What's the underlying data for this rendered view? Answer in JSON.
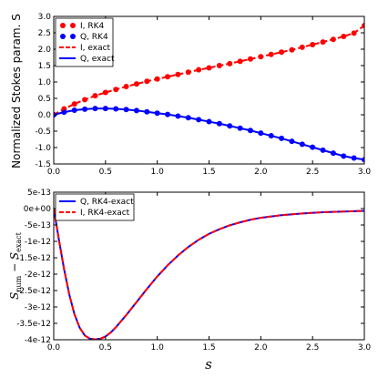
{
  "chart_data": [
    {
      "type": "line",
      "ylabel": "Normalized Stokes param. S",
      "xlabel": "",
      "xlim": [
        0,
        3
      ],
      "ylim": [
        -1.5,
        3.0
      ],
      "xticks": [
        "0.0",
        "0.5",
        "1.0",
        "1.5",
        "2.0",
        "2.5",
        "3.0"
      ],
      "yticks": [
        "-1.5",
        "-1.0",
        "-0.5",
        "0.0",
        "0.5",
        "1.0",
        "1.5",
        "2.0",
        "2.5",
        "3.0"
      ],
      "legend_position": "top-left",
      "colors": {
        "I": "#ff0000",
        "Q": "#0000ff"
      },
      "x": [
        0.0,
        0.1,
        0.2,
        0.3,
        0.4,
        0.5,
        0.6,
        0.7,
        0.8,
        0.9,
        1.0,
        1.1,
        1.2,
        1.3,
        1.4,
        1.5,
        1.6,
        1.7,
        1.8,
        1.9,
        2.0,
        2.1,
        2.2,
        2.3,
        2.4,
        2.5,
        2.6,
        2.7,
        2.8,
        2.9,
        3.0
      ],
      "series": [
        {
          "name": "I, RK4",
          "style": "dots",
          "color": "#ff0000",
          "values": [
            0.0,
            0.18,
            0.33,
            0.46,
            0.58,
            0.68,
            0.77,
            0.86,
            0.94,
            1.02,
            1.09,
            1.16,
            1.23,
            1.3,
            1.37,
            1.43,
            1.5,
            1.56,
            1.63,
            1.7,
            1.77,
            1.84,
            1.91,
            1.98,
            2.06,
            2.14,
            2.22,
            2.3,
            2.39,
            2.49,
            2.72
          ]
        },
        {
          "name": "Q, RK4",
          "style": "dots",
          "color": "#0000ff",
          "values": [
            0.0,
            0.08,
            0.14,
            0.17,
            0.19,
            0.19,
            0.18,
            0.16,
            0.13,
            0.09,
            0.05,
            0.01,
            -0.04,
            -0.09,
            -0.15,
            -0.21,
            -0.27,
            -0.34,
            -0.41,
            -0.48,
            -0.56,
            -0.64,
            -0.72,
            -0.81,
            -0.9,
            -0.99,
            -1.08,
            -1.17,
            -1.26,
            -1.32,
            -1.37
          ]
        },
        {
          "name": "I, exact",
          "style": "dashed",
          "color": "#ff0000",
          "values": [
            0.0,
            0.18,
            0.33,
            0.46,
            0.58,
            0.68,
            0.77,
            0.86,
            0.94,
            1.02,
            1.09,
            1.16,
            1.23,
            1.3,
            1.37,
            1.43,
            1.5,
            1.56,
            1.63,
            1.7,
            1.77,
            1.84,
            1.91,
            1.98,
            2.06,
            2.14,
            2.22,
            2.3,
            2.39,
            2.49,
            2.72
          ]
        },
        {
          "name": "Q, exact",
          "style": "solid",
          "color": "#0000ff",
          "values": [
            0.0,
            0.08,
            0.14,
            0.17,
            0.19,
            0.19,
            0.18,
            0.16,
            0.13,
            0.09,
            0.05,
            0.01,
            -0.04,
            -0.09,
            -0.15,
            -0.21,
            -0.27,
            -0.34,
            -0.41,
            -0.48,
            -0.56,
            -0.64,
            -0.72,
            -0.81,
            -0.9,
            -0.99,
            -1.08,
            -1.17,
            -1.26,
            -1.32,
            -1.37
          ]
        }
      ]
    },
    {
      "type": "line",
      "ylabel": "S_num − S_exact",
      "xlabel": "s",
      "xlim": [
        0,
        3
      ],
      "ylim": [
        -4e-12,
        5e-13
      ],
      "xticks": [
        "0.0",
        "0.5",
        "1.0",
        "1.5",
        "2.0",
        "2.5",
        "3.0"
      ],
      "yticks": [
        "5e-13",
        "0e+00",
        "-5e-13",
        "-1e-12",
        "-1.5e-12",
        "-2e-12",
        "-2.5e-12",
        "-3e-12",
        "-3.5e-12",
        "-4e-12"
      ],
      "legend_position": "top-left",
      "x": [
        0.0,
        0.05,
        0.1,
        0.15,
        0.2,
        0.25,
        0.3,
        0.35,
        0.4,
        0.45,
        0.5,
        0.55,
        0.6,
        0.7,
        0.8,
        0.9,
        1.0,
        1.1,
        1.2,
        1.3,
        1.4,
        1.5,
        1.6,
        1.7,
        1.8,
        1.9,
        2.0,
        2.2,
        2.4,
        2.6,
        2.8,
        3.0
      ],
      "series": [
        {
          "name": "Q, RK4-exact",
          "style": "solid",
          "color": "#0000ff",
          "values": [
            0.0,
            -9.5e-13,
            -1.85e-12,
            -2.62e-12,
            -3.22e-12,
            -3.63e-12,
            -3.87e-12,
            -3.97e-12,
            -3.99e-12,
            -3.97e-12,
            -3.9e-12,
            -3.78e-12,
            -3.62e-12,
            -3.25e-12,
            -2.85e-12,
            -2.45e-12,
            -2.07e-12,
            -1.73e-12,
            -1.43e-12,
            -1.17e-12,
            -9.5e-13,
            -7.7e-13,
            -6.3e-13,
            -5.1e-13,
            -4.2e-13,
            -3.4e-13,
            -2.8e-13,
            -2e-13,
            -1.5e-13,
            -1.1e-13,
            -9e-14,
            -7e-14
          ]
        },
        {
          "name": "I, RK4-exact",
          "style": "dashed",
          "color": "#ff0000",
          "values": [
            0.0,
            -9.5e-13,
            -1.85e-12,
            -2.62e-12,
            -3.22e-12,
            -3.63e-12,
            -3.87e-12,
            -3.97e-12,
            -3.99e-12,
            -3.97e-12,
            -3.9e-12,
            -3.78e-12,
            -3.62e-12,
            -3.25e-12,
            -2.85e-12,
            -2.45e-12,
            -2.07e-12,
            -1.73e-12,
            -1.43e-12,
            -1.17e-12,
            -9.5e-13,
            -7.7e-13,
            -6.3e-13,
            -5.1e-13,
            -4.2e-13,
            -3.4e-13,
            -2.8e-13,
            -2e-13,
            -1.5e-13,
            -1.1e-13,
            -9e-14,
            -7e-14
          ]
        }
      ]
    }
  ]
}
